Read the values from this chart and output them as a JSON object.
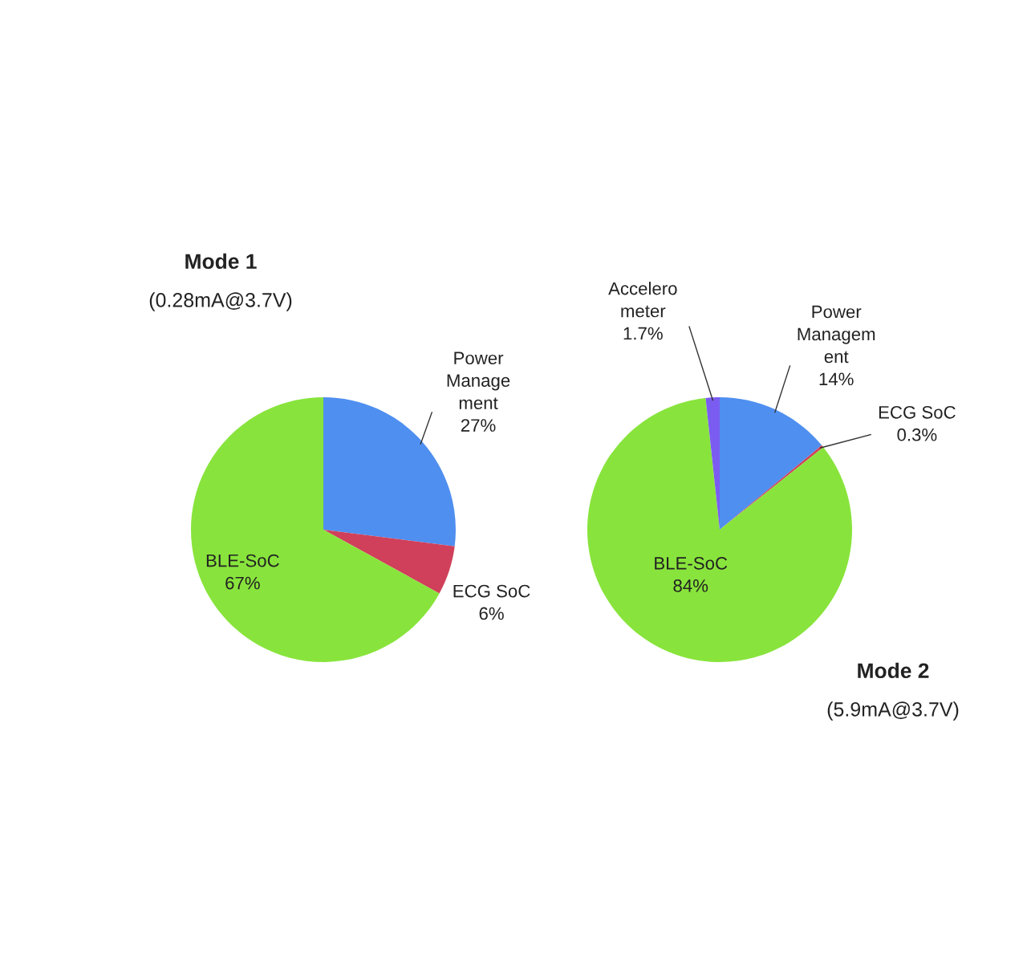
{
  "chart_data": [
    {
      "type": "pie",
      "title": "Mode 1",
      "subtitle": "(0.28mA@3.7V)",
      "categories": [
        "Power\nManage\nment",
        "ECG SoC",
        "BLE-SoC"
      ],
      "values": [
        27,
        6,
        67
      ],
      "colors": [
        "#4f8ff0",
        "#d0405a",
        "#88e43c"
      ],
      "value_labels": [
        "27%",
        "6%",
        "67%"
      ]
    },
    {
      "type": "pie",
      "title": "Mode 2",
      "subtitle": "(5.9mA@3.7V)",
      "categories": [
        "Power\nManagem\nent",
        "ECG SoC",
        "BLE-SoC",
        "Accelero\nmeter"
      ],
      "values": [
        14,
        0.3,
        84,
        1.7
      ],
      "colors": [
        "#4f8ff0",
        "#d0405a",
        "#88e43c",
        "#7b5cf0"
      ],
      "value_labels": [
        "14%",
        "0.3%",
        "84%",
        "1.7%"
      ]
    }
  ]
}
